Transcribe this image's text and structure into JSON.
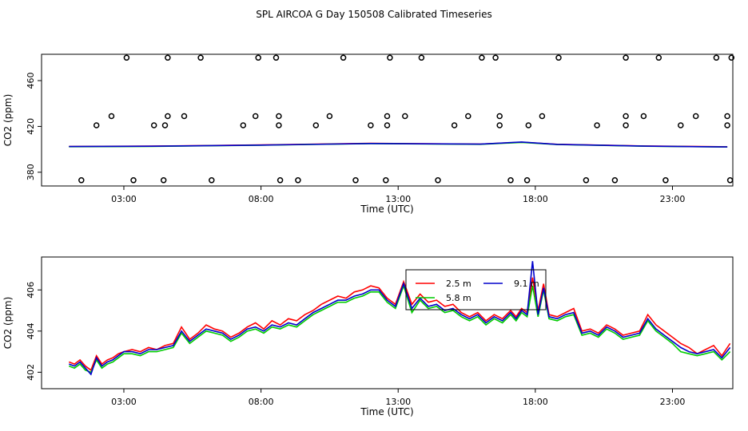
{
  "title": "SPL AIRCOA G  Day 150508  Calibrated Timeseries",
  "colors": {
    "s1": "#ff0000",
    "s2": "#00cc00",
    "s3": "#0000cc",
    "axis": "#000000"
  },
  "chart_data": [
    {
      "type": "scatter",
      "xlabel": "Time (UTC)",
      "ylabel": "CO2 (ppm)",
      "xlim": [
        0.0,
        25.2
      ],
      "ylim": [
        368,
        483
      ],
      "xticks": [
        3,
        8,
        13,
        18,
        23
      ],
      "xtick_labels": [
        "03:00",
        "08:00",
        "13:00",
        "18:00",
        "23:00"
      ],
      "yticks": [
        380,
        420,
        460
      ],
      "ytick_labels": [
        "380",
        "420",
        "460"
      ],
      "points": [
        {
          "x": 1.45,
          "y": 373
        },
        {
          "x": 3.35,
          "y": 373
        },
        {
          "x": 4.45,
          "y": 373
        },
        {
          "x": 6.2,
          "y": 373
        },
        {
          "x": 8.7,
          "y": 373
        },
        {
          "x": 9.35,
          "y": 373
        },
        {
          "x": 11.45,
          "y": 373
        },
        {
          "x": 12.55,
          "y": 373
        },
        {
          "x": 14.45,
          "y": 373
        },
        {
          "x": 17.1,
          "y": 373
        },
        {
          "x": 17.7,
          "y": 373
        },
        {
          "x": 19.85,
          "y": 373
        },
        {
          "x": 20.9,
          "y": 373
        },
        {
          "x": 22.75,
          "y": 373
        },
        {
          "x": 25.1,
          "y": 373
        },
        {
          "x": 2.0,
          "y": 421
        },
        {
          "x": 4.1,
          "y": 421
        },
        {
          "x": 4.5,
          "y": 421
        },
        {
          "x": 7.35,
          "y": 421
        },
        {
          "x": 8.65,
          "y": 421
        },
        {
          "x": 10.0,
          "y": 421
        },
        {
          "x": 12.0,
          "y": 421
        },
        {
          "x": 12.6,
          "y": 421
        },
        {
          "x": 15.05,
          "y": 421
        },
        {
          "x": 16.7,
          "y": 421
        },
        {
          "x": 17.75,
          "y": 421
        },
        {
          "x": 20.25,
          "y": 421
        },
        {
          "x": 21.3,
          "y": 421
        },
        {
          "x": 23.3,
          "y": 421
        },
        {
          "x": 25.0,
          "y": 421
        },
        {
          "x": 2.55,
          "y": 429
        },
        {
          "x": 4.6,
          "y": 429
        },
        {
          "x": 5.2,
          "y": 429
        },
        {
          "x": 7.8,
          "y": 429
        },
        {
          "x": 8.65,
          "y": 429
        },
        {
          "x": 10.5,
          "y": 429
        },
        {
          "x": 12.6,
          "y": 429
        },
        {
          "x": 13.25,
          "y": 429
        },
        {
          "x": 15.55,
          "y": 429
        },
        {
          "x": 16.7,
          "y": 429
        },
        {
          "x": 18.25,
          "y": 429
        },
        {
          "x": 21.3,
          "y": 429
        },
        {
          "x": 21.95,
          "y": 429
        },
        {
          "x": 23.85,
          "y": 429
        },
        {
          "x": 25.0,
          "y": 429
        },
        {
          "x": 3.1,
          "y": 480
        },
        {
          "x": 4.6,
          "y": 480
        },
        {
          "x": 5.8,
          "y": 480
        },
        {
          "x": 7.9,
          "y": 480
        },
        {
          "x": 8.55,
          "y": 480
        },
        {
          "x": 11.0,
          "y": 480
        },
        {
          "x": 12.7,
          "y": 480
        },
        {
          "x": 13.85,
          "y": 480
        },
        {
          "x": 16.05,
          "y": 480
        },
        {
          "x": 16.55,
          "y": 480
        },
        {
          "x": 18.85,
          "y": 480
        },
        {
          "x": 21.3,
          "y": 480
        },
        {
          "x": 22.5,
          "y": 480
        },
        {
          "x": 24.6,
          "y": 480
        },
        {
          "x": 25.15,
          "y": 480
        }
      ],
      "lines": [
        {
          "x": [
            1,
            4,
            8,
            12,
            16,
            17.5,
            18.8,
            22,
            25
          ],
          "y": [
            402.5,
            402.8,
            403.8,
            405.2,
            404.6,
            406.2,
            404.4,
            402.9,
            402.2
          ],
          "color": "#ff0000"
        },
        {
          "x": [
            1,
            4,
            8,
            12,
            16,
            17.5,
            18.8,
            22,
            25
          ],
          "y": [
            402.3,
            402.6,
            403.6,
            405.0,
            404.4,
            406.0,
            404.2,
            402.7,
            402.0
          ],
          "color": "#00cc00"
        },
        {
          "x": [
            1,
            4,
            8,
            12,
            16,
            17.5,
            18.8,
            22,
            25
          ],
          "y": [
            402.4,
            402.7,
            403.7,
            405.1,
            404.5,
            406.4,
            404.3,
            402.8,
            402.1
          ],
          "color": "#0000cc"
        }
      ]
    },
    {
      "type": "line",
      "xlabel": "Time (UTC)",
      "ylabel": "CO2 (ppm)",
      "xlim": [
        0.0,
        25.2
      ],
      "ylim": [
        401.2,
        407.6
      ],
      "xticks": [
        3,
        8,
        13,
        18,
        23
      ],
      "xtick_labels": [
        "03:00",
        "08:00",
        "13:00",
        "18:00",
        "23:00"
      ],
      "yticks": [
        402,
        404,
        406
      ],
      "ytick_labels": [
        "402",
        "404",
        "406"
      ],
      "legend": {
        "position": "top-center",
        "entries": [
          {
            "label": "2.5 m",
            "color": "#ff0000"
          },
          {
            "label": "5.8 m",
            "color": "#00cc00"
          },
          {
            "label": "9.1 m",
            "color": "#0000cc"
          }
        ]
      },
      "x": [
        1.0,
        1.2,
        1.4,
        1.6,
        1.8,
        2.0,
        2.2,
        2.4,
        2.6,
        2.8,
        3.0,
        3.3,
        3.6,
        3.9,
        4.2,
        4.5,
        4.8,
        5.1,
        5.4,
        5.7,
        6.0,
        6.3,
        6.6,
        6.9,
        7.2,
        7.5,
        7.8,
        8.1,
        8.4,
        8.7,
        9.0,
        9.3,
        9.6,
        9.9,
        10.2,
        10.5,
        10.8,
        11.1,
        11.4,
        11.7,
        12.0,
        12.3,
        12.6,
        12.9,
        13.2,
        13.5,
        13.8,
        14.1,
        14.4,
        14.7,
        15.0,
        15.3,
        15.6,
        15.9,
        16.2,
        16.5,
        16.8,
        17.1,
        17.3,
        17.5,
        17.7,
        17.9,
        18.1,
        18.3,
        18.5,
        18.8,
        19.1,
        19.4,
        19.7,
        20.0,
        20.3,
        20.6,
        20.9,
        21.2,
        21.5,
        21.8,
        22.1,
        22.4,
        22.7,
        23.0,
        23.3,
        23.6,
        23.9,
        24.2,
        24.5,
        24.8,
        25.1
      ],
      "series": [
        {
          "name": "2.5 m",
          "color": "#ff0000",
          "values": [
            402.5,
            402.4,
            402.6,
            402.3,
            402.1,
            402.8,
            402.4,
            402.6,
            402.7,
            402.9,
            403.0,
            403.1,
            403.0,
            403.2,
            403.1,
            403.3,
            403.4,
            404.2,
            403.6,
            403.9,
            404.3,
            404.1,
            404.0,
            403.7,
            403.9,
            404.2,
            404.4,
            404.1,
            404.5,
            404.3,
            404.6,
            404.5,
            404.8,
            405.0,
            405.3,
            405.5,
            405.7,
            405.6,
            405.9,
            406.0,
            406.2,
            406.1,
            405.6,
            405.3,
            406.4,
            405.3,
            405.8,
            405.4,
            405.5,
            405.2,
            405.3,
            404.9,
            404.7,
            404.9,
            404.5,
            404.8,
            404.6,
            405.0,
            404.7,
            405.1,
            404.9,
            406.6,
            405.0,
            406.3,
            404.8,
            404.7,
            404.9,
            405.1,
            404.0,
            404.1,
            403.9,
            404.3,
            404.1,
            403.8,
            403.9,
            404.0,
            404.8,
            404.3,
            404.0,
            403.7,
            403.4,
            403.2,
            402.9,
            403.1,
            403.3,
            402.8,
            403.4
          ]
        },
        {
          "name": "5.8 m",
          "color": "#00cc00",
          "values": [
            402.3,
            402.2,
            402.4,
            402.1,
            402.0,
            402.6,
            402.2,
            402.4,
            402.5,
            402.7,
            402.9,
            402.9,
            402.8,
            403.0,
            403.0,
            403.1,
            403.2,
            403.9,
            403.4,
            403.7,
            404.0,
            403.9,
            403.8,
            403.5,
            403.7,
            404.0,
            404.1,
            403.9,
            404.2,
            404.1,
            404.3,
            404.2,
            404.5,
            404.8,
            405.0,
            405.2,
            405.4,
            405.4,
            405.6,
            405.7,
            405.9,
            405.9,
            405.4,
            405.1,
            406.2,
            404.9,
            405.5,
            405.1,
            405.2,
            404.9,
            405.0,
            404.7,
            404.5,
            404.7,
            404.3,
            404.6,
            404.4,
            404.8,
            404.5,
            404.9,
            404.7,
            406.2,
            404.7,
            406.0,
            404.6,
            404.5,
            404.7,
            404.8,
            403.8,
            403.9,
            403.7,
            404.1,
            403.9,
            403.6,
            403.7,
            403.8,
            404.5,
            404.0,
            403.7,
            403.4,
            403.0,
            402.9,
            402.8,
            402.9,
            403.0,
            402.6,
            403.0
          ]
        },
        {
          "name": "9.1 m",
          "color": "#0000cc",
          "values": [
            402.4,
            402.3,
            402.5,
            402.2,
            401.9,
            402.7,
            402.3,
            402.5,
            402.6,
            402.8,
            403.0,
            403.0,
            402.9,
            403.1,
            403.1,
            403.2,
            403.3,
            404.0,
            403.5,
            403.8,
            404.1,
            404.0,
            403.9,
            403.6,
            403.8,
            404.1,
            404.2,
            404.0,
            404.3,
            404.2,
            404.4,
            404.3,
            404.6,
            404.9,
            405.1,
            405.3,
            405.5,
            405.5,
            405.7,
            405.8,
            406.0,
            406.0,
            405.5,
            405.2,
            406.3,
            405.1,
            405.6,
            405.2,
            405.3,
            405.0,
            405.1,
            404.8,
            404.6,
            404.8,
            404.4,
            404.7,
            404.5,
            404.9,
            404.6,
            405.0,
            404.8,
            407.4,
            404.8,
            406.1,
            404.7,
            404.6,
            404.8,
            404.9,
            403.9,
            404.0,
            403.8,
            404.2,
            404.0,
            403.7,
            403.8,
            403.9,
            404.6,
            404.1,
            403.8,
            403.5,
            403.2,
            403.0,
            402.9,
            403.0,
            403.1,
            402.7,
            403.2
          ]
        }
      ]
    }
  ]
}
